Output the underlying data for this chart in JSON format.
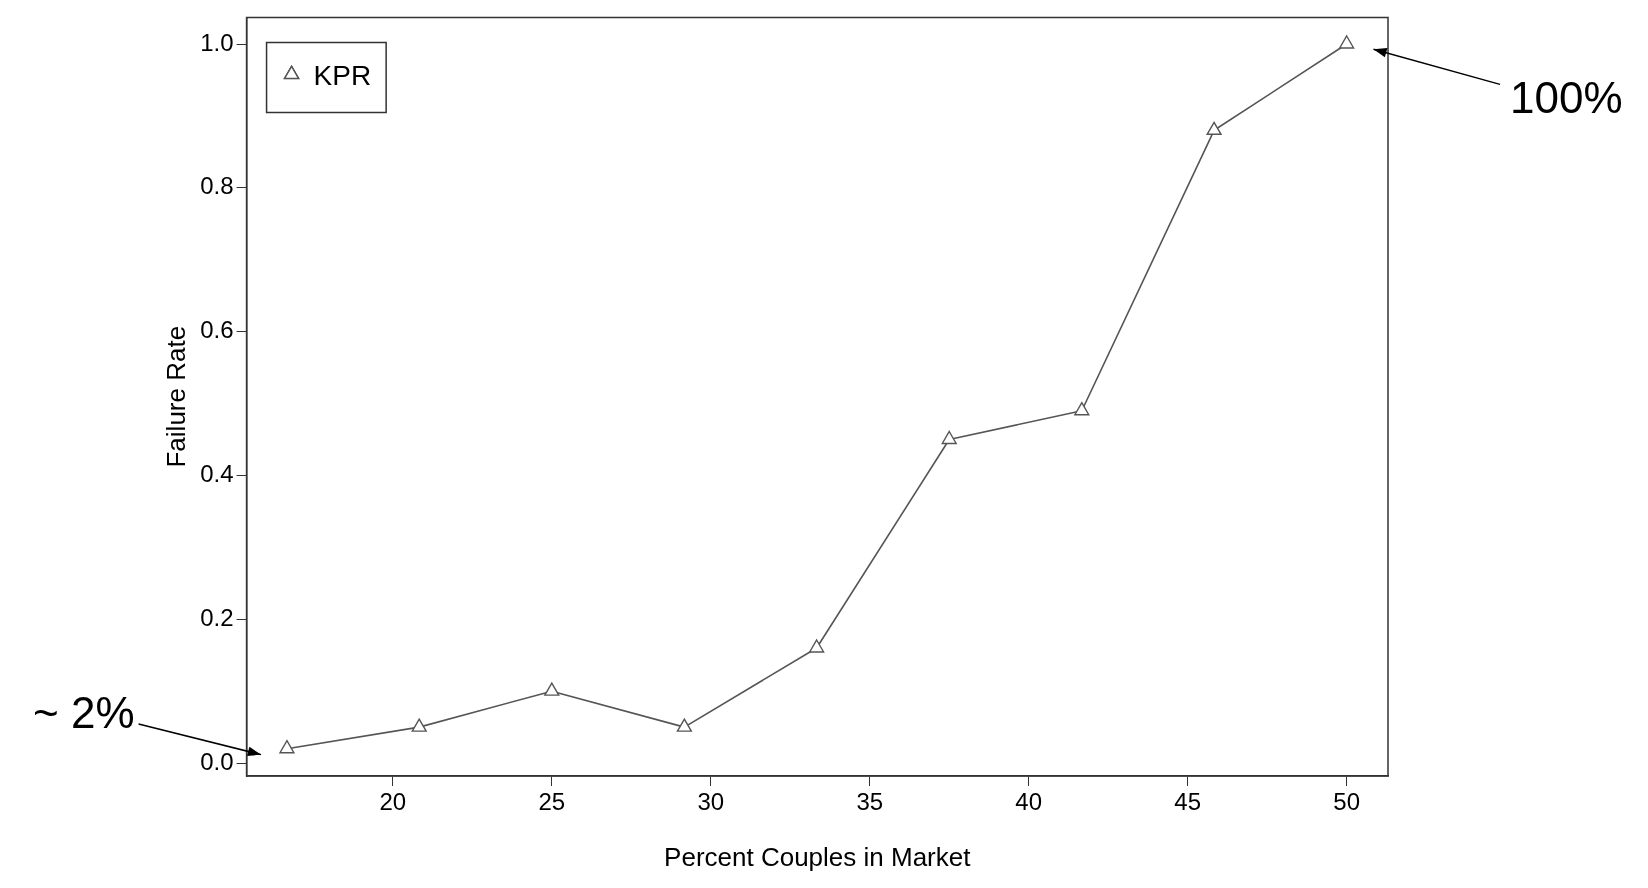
{
  "chart_data": {
    "type": "line",
    "xlabel": "Percent Couples in Market",
    "ylabel": "Failure Rate",
    "x": [
      16.67,
      20.83,
      25,
      29.17,
      33.33,
      37.5,
      41.67,
      45.83,
      50
    ],
    "series": [
      {
        "name": "KPR",
        "color": "#555555",
        "values": [
          0.02,
          0.05,
          0.1,
          0.05,
          0.16,
          0.45,
          0.49,
          0.88,
          1.0
        ]
      }
    ],
    "xlim": [
      15.4,
      51.3
    ],
    "xticks": [
      20,
      25,
      30,
      35,
      40,
      45,
      50
    ],
    "ylim": [
      -0.018,
      1.037
    ],
    "yticks": [
      {
        "value": 0,
        "label": "0.0"
      },
      {
        "value": 0.2,
        "label": "0.2"
      },
      {
        "value": 0.4,
        "label": "0.4"
      },
      {
        "value": 0.6,
        "label": "0.6"
      },
      {
        "value": 0.8,
        "label": "0.8"
      },
      {
        "value": 1,
        "label": "1.0"
      }
    ],
    "grid": false,
    "legend": "top left",
    "marker": "triangle",
    "line_style": "solid",
    "annotations": [
      "100%",
      "~ 2%"
    ]
  }
}
